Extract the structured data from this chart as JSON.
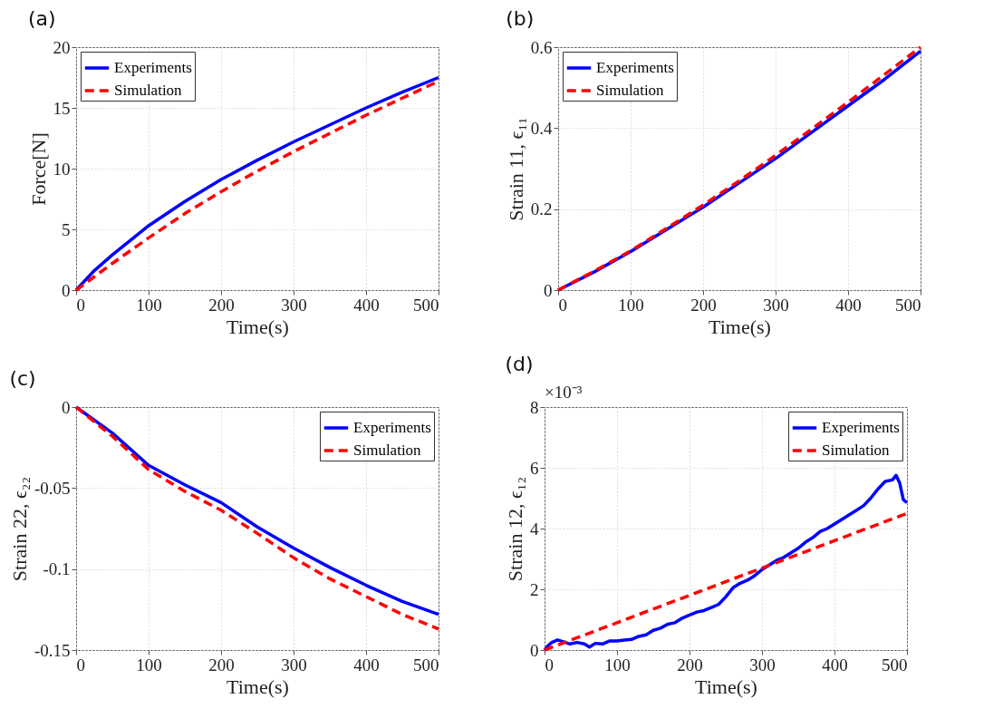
{
  "chart_data": [
    {
      "type": "line",
      "title": "(a)",
      "xlabel": "Time(s)",
      "ylabel": "Force[N]",
      "xlim": [
        0,
        500
      ],
      "ylim": [
        0,
        20
      ],
      "xticks": [
        0,
        100,
        200,
        300,
        400,
        500
      ],
      "yticks": [
        0,
        5,
        10,
        15,
        20
      ],
      "grid": true,
      "legend": "top left",
      "x": [
        0,
        25,
        50,
        100,
        150,
        200,
        250,
        300,
        350,
        400,
        450,
        500
      ],
      "series": [
        {
          "name": "Experiments",
          "color": "#0000ff",
          "line_style": "solid",
          "values": [
            0,
            1.6,
            2.9,
            5.3,
            7.3,
            9.1,
            10.7,
            12.2,
            13.6,
            15.0,
            16.3,
            17.5
          ]
        },
        {
          "name": "Simulation",
          "color": "#ff0000",
          "line_style": "dashed",
          "values": [
            0,
            1.1,
            2.2,
            4.3,
            6.3,
            8.1,
            9.8,
            11.4,
            12.9,
            14.4,
            15.8,
            17.2
          ]
        }
      ]
    },
    {
      "type": "line",
      "title": "(b)",
      "xlabel": "Time(s)",
      "ylabel": "Strain 11, ϵ₁₁",
      "xlim": [
        0,
        500
      ],
      "ylim": [
        0,
        0.6
      ],
      "xticks": [
        0,
        100,
        200,
        300,
        400,
        500
      ],
      "yticks": [
        0,
        0.2,
        0.4,
        0.6
      ],
      "grid": true,
      "legend": "top left",
      "x": [
        0,
        50,
        100,
        150,
        200,
        250,
        300,
        350,
        400,
        450,
        500
      ],
      "series": [
        {
          "name": "Experiments",
          "color": "#0000ff",
          "line_style": "solid",
          "values": [
            0,
            0.045,
            0.095,
            0.15,
            0.205,
            0.265,
            0.325,
            0.39,
            0.455,
            0.52,
            0.59
          ]
        },
        {
          "name": "Simulation",
          "color": "#ff0000",
          "line_style": "dashed",
          "values": [
            0,
            0.047,
            0.097,
            0.153,
            0.21,
            0.27,
            0.333,
            0.398,
            0.464,
            0.532,
            0.6
          ]
        }
      ]
    },
    {
      "type": "line",
      "title": "(c)",
      "xlabel": "Time(s)",
      "ylabel": "Strain 22, ϵ₂₂",
      "xlim": [
        0,
        500
      ],
      "ylim": [
        -0.15,
        0
      ],
      "xticks": [
        0,
        100,
        200,
        300,
        400,
        500
      ],
      "yticks": [
        -0.15,
        -0.1,
        -0.05,
        0
      ],
      "grid": true,
      "legend": "top right",
      "x": [
        0,
        50,
        100,
        150,
        200,
        250,
        300,
        350,
        400,
        450,
        500
      ],
      "series": [
        {
          "name": "Experiments",
          "color": "#0000ff",
          "line_style": "solid",
          "values": [
            0,
            -0.016,
            -0.036,
            -0.048,
            -0.059,
            -0.074,
            -0.087,
            -0.099,
            -0.11,
            -0.12,
            -0.128
          ]
        },
        {
          "name": "Simulation",
          "color": "#ff0000",
          "line_style": "dashed",
          "values": [
            0,
            -0.018,
            -0.0386,
            -0.052,
            -0.0637,
            -0.078,
            -0.093,
            -0.106,
            -0.117,
            -0.128,
            -0.137
          ]
        }
      ]
    },
    {
      "type": "line",
      "title": "(d)",
      "xlabel": "Time(s)",
      "ylabel": "Strain 12, ϵ₁₂",
      "xlim": [
        0,
        500
      ],
      "ylim": [
        0,
        8
      ],
      "xticks": [
        0,
        100,
        200,
        300,
        400,
        500
      ],
      "yticks": [
        0,
        2,
        4,
        6,
        8
      ],
      "grid": true,
      "legend": "top right",
      "annotations": [
        "×10⁻³"
      ],
      "series": [
        {
          "name": "Experiments",
          "color": "#0000ff",
          "line_style": "solid",
          "x": [
            0,
            5,
            10,
            18,
            25,
            35,
            45,
            55,
            62,
            70,
            80,
            90,
            100,
            110,
            120,
            130,
            140,
            150,
            160,
            170,
            180,
            190,
            200,
            210,
            220,
            230,
            240,
            250,
            260,
            270,
            280,
            290,
            300,
            310,
            320,
            330,
            340,
            350,
            360,
            370,
            380,
            390,
            400,
            410,
            420,
            430,
            440,
            450,
            460,
            470,
            480,
            485,
            490,
            495,
            500
          ],
          "values": [
            0,
            0.15,
            0.25,
            0.33,
            0.28,
            0.2,
            0.25,
            0.2,
            0.1,
            0.22,
            0.2,
            0.3,
            0.3,
            0.33,
            0.35,
            0.45,
            0.5,
            0.65,
            0.72,
            0.85,
            0.9,
            1.05,
            1.15,
            1.25,
            1.3,
            1.4,
            1.5,
            1.75,
            2.05,
            2.2,
            2.3,
            2.45,
            2.65,
            2.8,
            2.95,
            3.05,
            3.2,
            3.35,
            3.55,
            3.7,
            3.9,
            4.0,
            4.15,
            4.3,
            4.45,
            4.6,
            4.75,
            5.0,
            5.3,
            5.55,
            5.6,
            5.75,
            5.5,
            4.95,
            4.85
          ]
        },
        {
          "name": "Simulation",
          "color": "#ff0000",
          "line_style": "dashed",
          "x": [
            0,
            100,
            200,
            300,
            400,
            500
          ],
          "values": [
            0,
            0.9,
            1.8,
            2.7,
            3.6,
            4.5
          ]
        }
      ]
    }
  ]
}
